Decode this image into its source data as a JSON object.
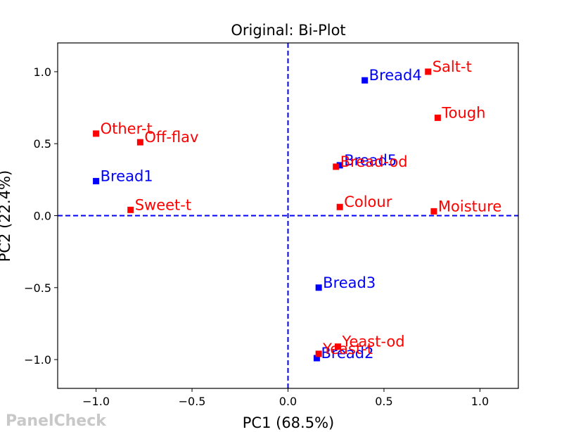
{
  "watermark": "PanelCheck",
  "chart_data": {
    "type": "scatter",
    "title": "Original: Bi-Plot",
    "xlabel": "PC1 (68.5%)",
    "ylabel": "PC2 (22.4%)",
    "xlim": [
      -1.2,
      1.2
    ],
    "ylim": [
      -1.2,
      1.2
    ],
    "xticks": [
      -1.0,
      -0.5,
      0.0,
      0.5,
      1.0
    ],
    "xtick_labels": [
      "−1.0",
      "−0.5",
      "0.0",
      "0.5",
      "1.0"
    ],
    "yticks": [
      -1.0,
      -0.5,
      0.0,
      0.5,
      1.0
    ],
    "ytick_labels": [
      "−1.0",
      "−0.5",
      "0.0",
      "0.5",
      "1.0"
    ],
    "reference_lines": {
      "x": 0.0,
      "y": 0.0,
      "color": "#0000ff",
      "style": "dashed"
    },
    "grid": false,
    "colors": {
      "samples": "#0000ff",
      "attributes": "#ff0000"
    },
    "samples": [
      {
        "label": "Bread1",
        "x": -1.0,
        "y": 0.24
      },
      {
        "label": "Bread2",
        "x": 0.15,
        "y": -0.99
      },
      {
        "label": "Bread3",
        "x": 0.16,
        "y": -0.5
      },
      {
        "label": "Bread4",
        "x": 0.4,
        "y": 0.94
      },
      {
        "label": "Bread5",
        "x": 0.27,
        "y": 0.35
      }
    ],
    "attributes": [
      {
        "label": "Salt-t",
        "x": 0.73,
        "y": 1.0
      },
      {
        "label": "Tough",
        "x": 0.78,
        "y": 0.68
      },
      {
        "label": "Other-t",
        "x": -1.0,
        "y": 0.57
      },
      {
        "label": "Off-flav",
        "x": -0.77,
        "y": 0.51
      },
      {
        "label": "Bread-od",
        "x": 0.25,
        "y": 0.34
      },
      {
        "label": "Sweet-t",
        "x": -0.82,
        "y": 0.04
      },
      {
        "label": "Colour",
        "x": 0.27,
        "y": 0.06
      },
      {
        "label": "Moisture",
        "x": 0.76,
        "y": 0.03
      },
      {
        "label": "Yeast-od",
        "x": 0.26,
        "y": -0.91
      },
      {
        "label": "Yeast-t",
        "x": 0.16,
        "y": -0.96
      }
    ]
  }
}
